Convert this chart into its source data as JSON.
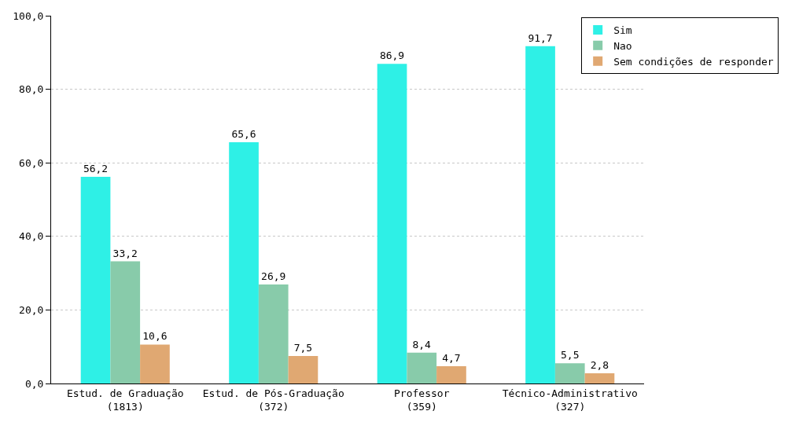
{
  "chart_data": {
    "type": "bar",
    "categories": [
      "Estud. de Graduação\n(1813)",
      "Estud. de Pós-Graduação\n(372)",
      "Professor\n(359)",
      "Técnico-Administrativo\n(327)"
    ],
    "series": [
      {
        "name": "Sim",
        "color": "#2ef0e6",
        "values": [
          56.2,
          65.6,
          86.9,
          91.7
        ],
        "value_labels": [
          "56,2",
          "65,6",
          "86,9",
          "91,7"
        ]
      },
      {
        "name": "Nao",
        "color": "#88cbaa",
        "values": [
          33.2,
          26.9,
          8.4,
          5.5
        ],
        "value_labels": [
          "33,2",
          "26,9",
          "8,4",
          "5,5"
        ]
      },
      {
        "name": "Sem condições de responder",
        "color": "#e0a872",
        "values": [
          10.6,
          7.5,
          4.7,
          2.8
        ],
        "value_labels": [
          "10,6",
          "7,5",
          "4,7",
          "2,8"
        ]
      }
    ],
    "ylim": [
      0,
      100
    ],
    "yticks": [
      {
        "value": 0,
        "label": "0,0"
      },
      {
        "value": 20,
        "label": "20,0"
      },
      {
        "value": 40,
        "label": "40,0"
      },
      {
        "value": 60,
        "label": "60,0"
      },
      {
        "value": 80,
        "label": "80,0"
      },
      {
        "value": 100,
        "label": "100,0"
      }
    ],
    "grid": "y",
    "legend": "top right"
  }
}
